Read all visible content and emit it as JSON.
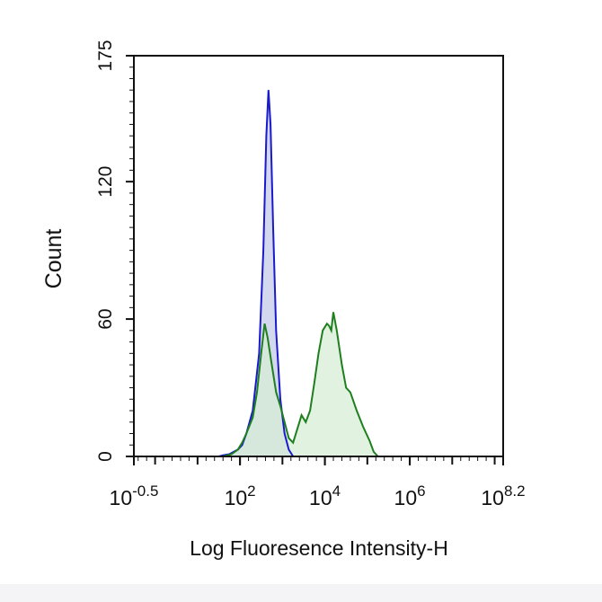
{
  "chart_data": {
    "type": "area",
    "title": "",
    "xlabel": "Log Fluoresence Intensity-H",
    "ylabel": "Count",
    "x_scale": "log10",
    "xlim_log10": [
      -0.5,
      8.2
    ],
    "ylim": [
      0,
      175
    ],
    "grid": false,
    "legend": "none",
    "y_ticks": [
      {
        "value": 0,
        "label": "0"
      },
      {
        "value": 60,
        "label": "60"
      },
      {
        "value": 120,
        "label": "120"
      },
      {
        "value": 175,
        "label": "175"
      }
    ],
    "x_ticks": [
      {
        "log10": -0.5,
        "base": "10",
        "exp": "-0.5"
      },
      {
        "log10": 2,
        "base": "10",
        "exp": "2"
      },
      {
        "log10": 4,
        "base": "10",
        "exp": "4"
      },
      {
        "log10": 6,
        "base": "10",
        "exp": "6"
      },
      {
        "log10": 8.2,
        "base": "10",
        "exp": "8.2"
      }
    ],
    "series": [
      {
        "color": "#1a1acd",
        "fill": "#c4cbea",
        "points_log10": [
          [
            1.5,
            0
          ],
          [
            1.6,
            0.5
          ],
          [
            1.75,
            1
          ],
          [
            1.85,
            2
          ],
          [
            1.95,
            3
          ],
          [
            2.05,
            5
          ],
          [
            2.15,
            10
          ],
          [
            2.3,
            20
          ],
          [
            2.45,
            45
          ],
          [
            2.55,
            90
          ],
          [
            2.62,
            140
          ],
          [
            2.67,
            160
          ],
          [
            2.72,
            145
          ],
          [
            2.78,
            100
          ],
          [
            2.85,
            55
          ],
          [
            2.95,
            25
          ],
          [
            3.05,
            10
          ],
          [
            3.15,
            3
          ],
          [
            3.25,
            0
          ]
        ]
      },
      {
        "color": "#1e7f1e",
        "fill": "#d7edd5",
        "points_log10": [
          [
            1.6,
            0
          ],
          [
            1.8,
            1
          ],
          [
            1.95,
            3
          ],
          [
            2.05,
            6
          ],
          [
            2.15,
            10
          ],
          [
            2.3,
            17
          ],
          [
            2.4,
            28
          ],
          [
            2.5,
            45
          ],
          [
            2.58,
            58
          ],
          [
            2.65,
            52
          ],
          [
            2.75,
            40
          ],
          [
            2.85,
            28
          ],
          [
            2.95,
            22
          ],
          [
            3.05,
            15
          ],
          [
            3.15,
            8
          ],
          [
            3.25,
            6
          ],
          [
            3.35,
            12
          ],
          [
            3.45,
            18
          ],
          [
            3.55,
            15
          ],
          [
            3.65,
            20
          ],
          [
            3.75,
            32
          ],
          [
            3.85,
            45
          ],
          [
            3.95,
            55
          ],
          [
            4.05,
            58
          ],
          [
            4.1,
            57
          ],
          [
            4.15,
            55
          ],
          [
            4.2,
            63
          ],
          [
            4.28,
            55
          ],
          [
            4.4,
            40
          ],
          [
            4.5,
            30
          ],
          [
            4.6,
            28
          ],
          [
            4.75,
            20
          ],
          [
            4.9,
            13
          ],
          [
            5.05,
            7
          ],
          [
            5.15,
            2
          ],
          [
            5.25,
            0
          ]
        ]
      }
    ]
  }
}
